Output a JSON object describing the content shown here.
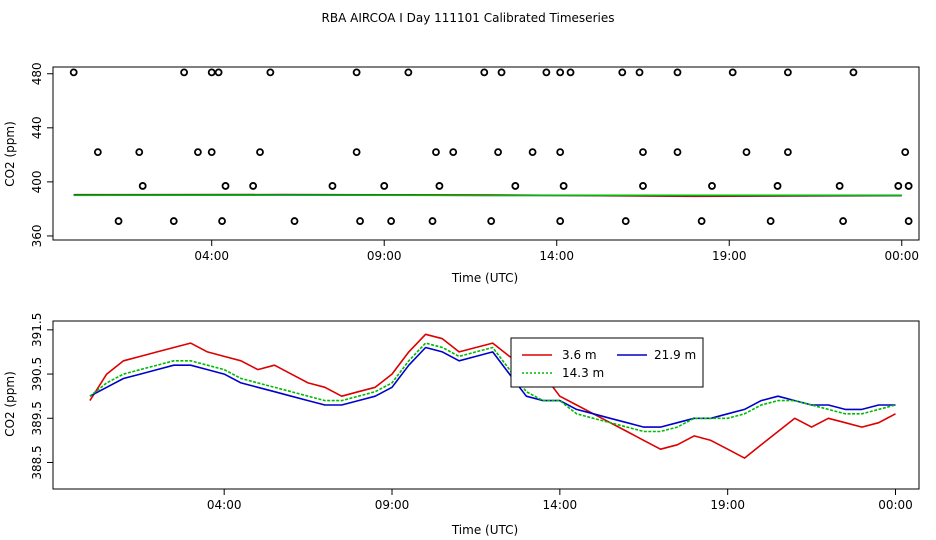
{
  "figure": {
    "title": "RBA AIRCOA I  Day 111101  Calibrated Timeseries"
  },
  "colors": {
    "3.6 m": "#dd0000",
    "14.3 m": "#00bb00",
    "21.9 m": "#0000cc",
    "calibration": "#000000"
  },
  "chart_data": [
    {
      "type": "scatter",
      "xlabel": "Time (UTC)",
      "ylabel": "CO2 (ppm)",
      "xlim": [
        -0.6,
        24.5
      ],
      "ylim": [
        357,
        485
      ],
      "x_ticks": [
        4,
        9,
        14,
        19,
        24
      ],
      "x_tick_labels": [
        "04:00",
        "09:00",
        "14:00",
        "19:00",
        "00:00"
      ],
      "y_ticks": [
        360,
        400,
        440,
        480
      ],
      "y_tick_labels": [
        "360",
        "400",
        "440",
        "480"
      ],
      "calibration_points": {
        "x": [
          1.3,
          2.9,
          4.3,
          6.4,
          8.3,
          9.2,
          10.4,
          12.1,
          14.1,
          16.0,
          18.2,
          20.2,
          22.3,
          24.2,
          2.0,
          4.4,
          5.2,
          7.5,
          9.0,
          10.6,
          12.8,
          14.2,
          16.5,
          18.5,
          20.4,
          22.2,
          23.9,
          24.2,
          0.7,
          1.9,
          3.6,
          4.0,
          5.4,
          8.2,
          10.5,
          11.0,
          12.3,
          13.3,
          14.1,
          16.5,
          17.5,
          19.5,
          20.7,
          24.1,
          0.0,
          3.2,
          4.0,
          4.2,
          5.7,
          8.2,
          9.7,
          11.9,
          12.4,
          13.7,
          14.1,
          14.4,
          15.9,
          16.4,
          17.5,
          19.1,
          20.7,
          22.6
        ],
        "y": [
          371,
          371,
          371,
          371,
          371,
          371,
          371,
          371,
          371,
          371,
          371,
          371,
          371,
          371,
          397,
          397,
          397,
          397,
          397,
          397,
          397,
          397,
          397,
          397,
          397,
          397,
          397,
          397,
          422,
          422,
          422,
          422,
          422,
          422,
          422,
          422,
          422,
          422,
          422,
          422,
          422,
          422,
          422,
          422,
          481,
          481,
          481,
          481,
          481,
          481,
          481,
          481,
          481,
          481,
          481,
          481,
          481,
          481,
          481,
          481,
          481,
          481
        ]
      },
      "series": [
        {
          "name": "",
          "x": [
            0,
            6,
            12,
            18,
            24
          ],
          "values": [
            390.5,
            390.6,
            390.4,
            389.3,
            389.8
          ]
        },
        {
          "name": "",
          "x": [
            0,
            6,
            12,
            18,
            24
          ],
          "values": [
            390.2,
            390.4,
            390.1,
            390.0,
            390.0
          ]
        },
        {
          "name": "",
          "x": [
            0,
            6,
            12,
            18,
            24
          ],
          "values": [
            390.1,
            390.3,
            390.0,
            390.1,
            390.0
          ]
        }
      ]
    },
    {
      "type": "line",
      "xlabel": "Time (UTC)",
      "ylabel": "CO2 (ppm)",
      "xlim": [
        -1.1,
        24.7
      ],
      "ylim": [
        387.9,
        391.7
      ],
      "x_ticks": [
        4,
        9,
        14,
        19,
        24
      ],
      "x_tick_labels": [
        "04:00",
        "09:00",
        "14:00",
        "19:00",
        "00:00"
      ],
      "y_ticks": [
        388.5,
        389.5,
        390.5,
        391.5
      ],
      "y_tick_labels": [
        "388.5",
        "389.5",
        "390.5",
        "391.5"
      ],
      "legend": {
        "position": "top-right",
        "entries": [
          "3.6 m",
          "21.9 m",
          "14.3 m"
        ]
      },
      "series": [
        {
          "name": "3.6 m",
          "x": [
            0,
            0.5,
            1,
            1.5,
            2,
            2.5,
            3,
            3.5,
            4,
            4.5,
            5,
            5.5,
            6,
            6.5,
            7,
            7.5,
            8,
            8.5,
            9,
            9.5,
            10,
            10.5,
            11,
            11.5,
            12,
            12.5,
            13,
            13.5,
            14,
            14.5,
            15,
            15.5,
            16,
            16.5,
            17,
            17.5,
            18,
            18.5,
            19,
            19.5,
            20,
            20.5,
            21,
            21.5,
            22,
            22.5,
            23,
            23.5,
            24
          ],
          "values": [
            389.9,
            390.5,
            390.8,
            390.9,
            391.0,
            391.1,
            391.2,
            391.0,
            390.9,
            390.8,
            390.6,
            390.7,
            390.5,
            390.3,
            390.2,
            390.0,
            390.1,
            390.2,
            390.5,
            391.0,
            391.4,
            391.3,
            391.0,
            391.1,
            391.2,
            390.9,
            390.7,
            390.5,
            390.0,
            389.8,
            389.6,
            389.4,
            389.2,
            389.0,
            388.8,
            388.9,
            389.1,
            389.0,
            388.8,
            388.6,
            388.9,
            389.2,
            389.5,
            389.3,
            389.5,
            389.4,
            389.3,
            389.4,
            389.6
          ]
        },
        {
          "name": "21.9 m",
          "x": [
            0,
            0.5,
            1,
            1.5,
            2,
            2.5,
            3,
            3.5,
            4,
            4.5,
            5,
            5.5,
            6,
            6.5,
            7,
            7.5,
            8,
            8.5,
            9,
            9.5,
            10,
            10.5,
            11,
            11.5,
            12,
            12.5,
            13,
            13.5,
            14,
            14.5,
            15,
            15.5,
            16,
            16.5,
            17,
            17.5,
            18,
            18.5,
            19,
            19.5,
            20,
            20.5,
            21,
            21.5,
            22,
            22.5,
            23,
            23.5,
            24
          ],
          "values": [
            390.0,
            390.2,
            390.4,
            390.5,
            390.6,
            390.7,
            390.7,
            390.6,
            390.5,
            390.3,
            390.2,
            390.1,
            390.0,
            389.9,
            389.8,
            389.8,
            389.9,
            390.0,
            390.2,
            390.7,
            391.1,
            391.0,
            390.8,
            390.9,
            391.0,
            390.5,
            390.0,
            389.9,
            389.9,
            389.7,
            389.6,
            389.5,
            389.4,
            389.3,
            389.3,
            389.4,
            389.5,
            389.5,
            389.6,
            389.7,
            389.9,
            390.0,
            389.9,
            389.8,
            389.8,
            389.7,
            389.7,
            389.8,
            389.8
          ]
        },
        {
          "name": "14.3 m",
          "x": [
            0,
            0.5,
            1,
            1.5,
            2,
            2.5,
            3,
            3.5,
            4,
            4.5,
            5,
            5.5,
            6,
            6.5,
            7,
            7.5,
            8,
            8.5,
            9,
            9.5,
            10,
            10.5,
            11,
            11.5,
            12,
            12.5,
            13,
            13.5,
            14,
            14.5,
            15,
            15.5,
            16,
            16.5,
            17,
            17.5,
            18,
            18.5,
            19,
            19.5,
            20,
            20.5,
            21,
            21.5,
            22,
            22.5,
            23,
            23.5,
            24
          ],
          "values": [
            390.0,
            390.3,
            390.5,
            390.6,
            390.7,
            390.8,
            390.8,
            390.7,
            390.6,
            390.4,
            390.3,
            390.2,
            390.1,
            390.0,
            389.9,
            389.9,
            390.0,
            390.1,
            390.3,
            390.8,
            391.2,
            391.1,
            390.9,
            391.0,
            391.1,
            390.6,
            390.1,
            389.9,
            389.9,
            389.6,
            389.5,
            389.4,
            389.3,
            389.2,
            389.2,
            389.3,
            389.5,
            389.5,
            389.5,
            389.6,
            389.8,
            389.9,
            389.9,
            389.8,
            389.7,
            389.6,
            389.6,
            389.7,
            389.8
          ]
        }
      ]
    }
  ]
}
